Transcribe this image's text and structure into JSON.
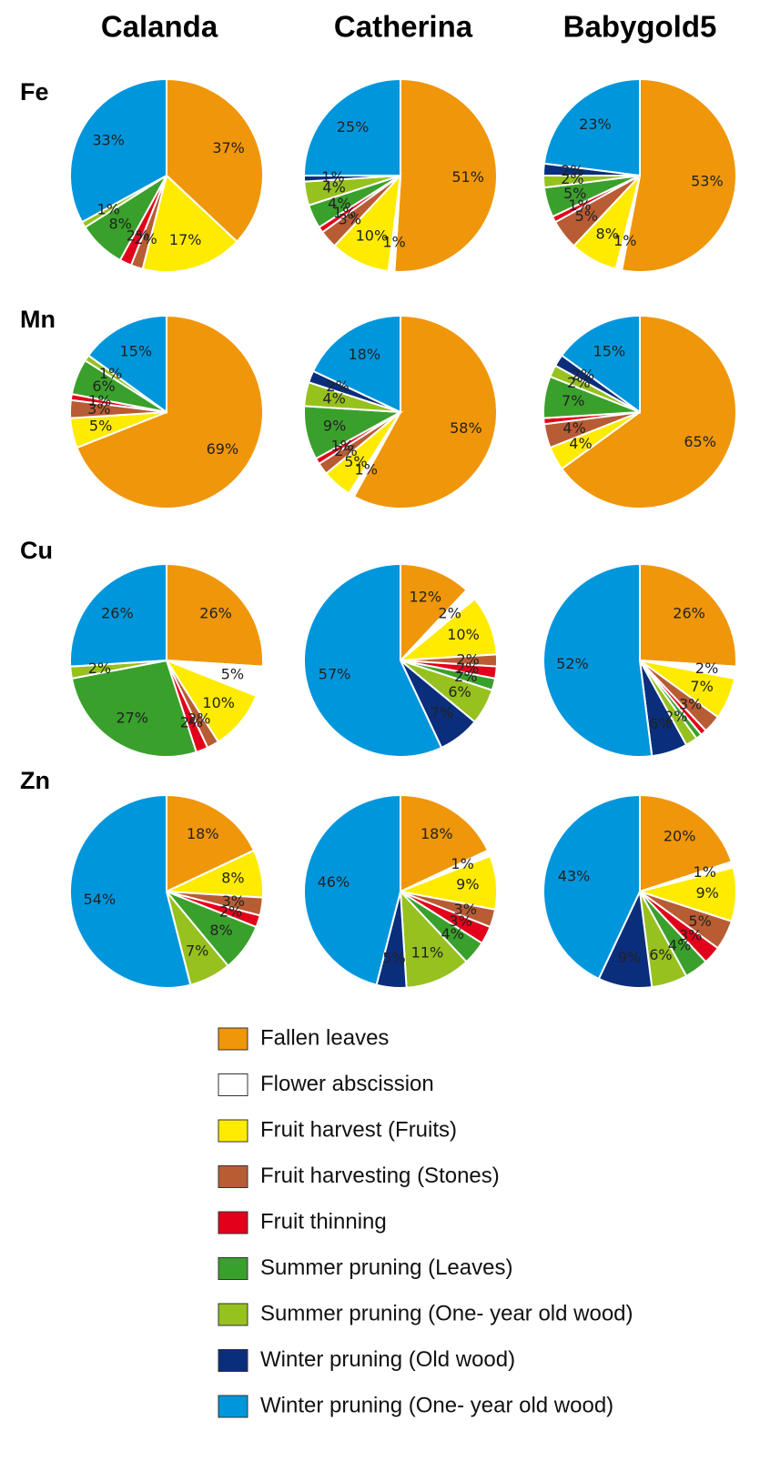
{
  "columns": [
    "Calanda",
    "Catherina",
    "Babygold5"
  ],
  "rows": [
    "Fe",
    "Mn",
    "Cu",
    "Zn"
  ],
  "legend": {
    "labels": [
      "Fallen leaves",
      "Flower abscission",
      "Fruit harvest (Fruits)",
      "Fruit harvesting (Stones)",
      "Fruit thinning",
      "Summer pruning (Leaves)",
      "Summer pruning (One- year old wood)",
      "Winter pruning (Old wood)",
      "Winter pruning (One- year old wood)"
    ],
    "colors": [
      "#f0960a",
      "#ffffff",
      "#ffeb00",
      "#b85c34",
      "#e3001b",
      "#3aa02c",
      "#96c11f",
      "#0a2e7c",
      "#0096dc"
    ]
  },
  "chart_data": [
    {
      "type": "pie",
      "values": [
        37,
        0,
        17,
        2,
        2,
        8,
        1,
        0,
        33
      ],
      "value_labels": [
        "37%",
        null,
        "17%",
        "2%",
        "2%",
        "8%",
        "1%",
        null,
        "33%"
      ]
    },
    {
      "type": "pie",
      "values": [
        51,
        1,
        10,
        3,
        1,
        4,
        4,
        1,
        25
      ],
      "value_labels": [
        "51%",
        "1%",
        "10%",
        "3%",
        "1%",
        "4%",
        "4%",
        "1%",
        "25%"
      ]
    },
    {
      "type": "pie",
      "values": [
        53,
        1,
        8,
        5,
        1,
        5,
        2,
        2,
        23
      ],
      "value_labels": [
        "53%",
        "1%",
        "8%",
        "5%",
        "1%",
        "5%",
        "2%",
        "2%",
        "23%"
      ]
    },
    {
      "type": "pie",
      "values": [
        69,
        0,
        5,
        3,
        1,
        6,
        1,
        0,
        15
      ],
      "value_labels": [
        "69%",
        null,
        "5%",
        "3%",
        "1%",
        "6%",
        "1%",
        null,
        "15%"
      ]
    },
    {
      "type": "pie",
      "values": [
        58,
        1,
        5,
        2,
        1,
        9,
        4,
        2,
        18
      ],
      "value_labels": [
        "58%",
        "1%",
        "5%",
        "2%",
        "1%",
        "9%",
        "4%",
        "2%",
        "18%"
      ]
    },
    {
      "type": "pie",
      "values": [
        65,
        0,
        4,
        4,
        1,
        7,
        2,
        2,
        15
      ],
      "value_labels": [
        "65%",
        null,
        "4%",
        "4%",
        null,
        "7%",
        "2%",
        "2%",
        "15%"
      ]
    },
    {
      "type": "pie",
      "values": [
        26,
        5,
        10,
        2,
        2,
        27,
        2,
        0,
        26
      ],
      "value_labels": [
        "26%",
        "5%",
        "10%",
        "2%",
        "2%",
        "27%",
        "2%",
        null,
        "26%"
      ]
    },
    {
      "type": "pie",
      "values": [
        12,
        2,
        10,
        2,
        2,
        2,
        6,
        7,
        57
      ],
      "value_labels": [
        "12%",
        "2%",
        "10%",
        "2%",
        "2%",
        "2%",
        "6%",
        "7%",
        "57%"
      ]
    },
    {
      "type": "pie",
      "values": [
        26,
        2,
        7,
        3,
        1,
        1,
        2,
        6,
        52
      ],
      "value_labels": [
        "26%",
        "2%",
        "7%",
        "3%",
        null,
        null,
        "2%",
        "6%",
        "52%"
      ]
    },
    {
      "type": "pie",
      "values": [
        18,
        0,
        8,
        3,
        2,
        8,
        7,
        0,
        54
      ],
      "value_labels": [
        "18%",
        null,
        "8%",
        "3%",
        "2%",
        "8%",
        "7%",
        null,
        "54%"
      ]
    },
    {
      "type": "pie",
      "values": [
        18,
        1,
        9,
        3,
        3,
        4,
        11,
        5,
        46
      ],
      "value_labels": [
        "18%",
        "1%",
        "9%",
        "3%",
        "3%",
        "4%",
        "11%",
        "5%",
        "46%"
      ]
    },
    {
      "type": "pie",
      "values": [
        20,
        1,
        9,
        5,
        3,
        4,
        6,
        9,
        43
      ],
      "value_labels": [
        "20%",
        "1%",
        "9%",
        "5%",
        "3%",
        "4%",
        "6%",
        "9%",
        "43%"
      ]
    }
  ]
}
